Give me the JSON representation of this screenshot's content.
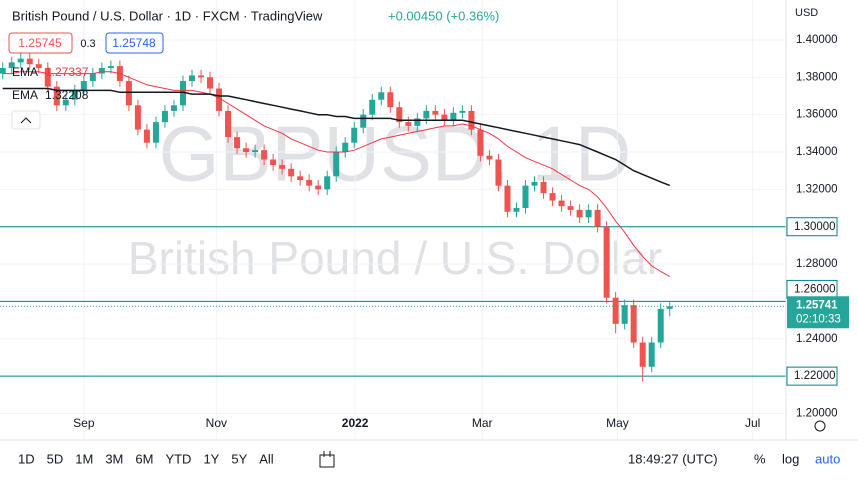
{
  "toolbar": {
    "ranges": [
      "1D",
      "5D",
      "1M",
      "3M",
      "6M",
      "YTD",
      "1Y",
      "5Y",
      "All"
    ],
    "clock": "18:49:27 (UTC)",
    "options": [
      "%",
      "log",
      "auto"
    ]
  },
  "chart_data": {
    "type": "candlestick",
    "title": "British Pound / U.S. Dollar · 1D · FXCM · TradingView",
    "subtitle": "+0.00450 (+0.36%)",
    "bid": "1.25745",
    "spread": "0.3",
    "ask": "1.25748",
    "watermark": [
      "GBPUSD, 1D",
      "British Pound / U.S. Dollar"
    ],
    "currency": "USD",
    "up_color": "#26a69a",
    "down_color": "#ef5350",
    "open": [
      1.382,
      1.385,
      1.388,
      1.39,
      1.387,
      1.385,
      1.375,
      1.365,
      1.368,
      1.373,
      1.378,
      1.382,
      1.385,
      1.386,
      1.378,
      1.365,
      1.352,
      1.345,
      1.356,
      1.362,
      1.365,
      1.378,
      1.381,
      1.38,
      1.374,
      1.362,
      1.348,
      1.342,
      1.34,
      1.341,
      1.336,
      1.333,
      1.331,
      1.327,
      1.325,
      1.322,
      1.32,
      1.327,
      1.34,
      1.345,
      1.353,
      1.36,
      1.368,
      1.372,
      1.364,
      1.356,
      1.354,
      1.358,
      1.362,
      1.36,
      1.357,
      1.361,
      1.362,
      1.352,
      1.338,
      1.336,
      1.322,
      1.308,
      1.31,
      1.322,
      1.324,
      1.318,
      1.314,
      1.311,
      1.309,
      1.305,
      1.309,
      1.3,
      1.262,
      1.248,
      1.258,
      1.238,
      1.225,
      1.238,
      1.256
    ],
    "high": [
      1.388,
      1.391,
      1.393,
      1.393,
      1.39,
      1.388,
      1.378,
      1.371,
      1.376,
      1.381,
      1.385,
      1.388,
      1.389,
      1.389,
      1.381,
      1.368,
      1.355,
      1.359,
      1.365,
      1.368,
      1.381,
      1.384,
      1.384,
      1.383,
      1.377,
      1.365,
      1.351,
      1.345,
      1.344,
      1.344,
      1.339,
      1.336,
      1.334,
      1.33,
      1.328,
      1.325,
      1.33,
      1.343,
      1.348,
      1.356,
      1.363,
      1.371,
      1.375,
      1.375,
      1.367,
      1.359,
      1.361,
      1.365,
      1.365,
      1.363,
      1.364,
      1.365,
      1.365,
      1.355,
      1.341,
      1.339,
      1.325,
      1.313,
      1.325,
      1.327,
      1.327,
      1.321,
      1.317,
      1.314,
      1.312,
      1.312,
      1.312,
      1.303,
      1.265,
      1.261,
      1.261,
      1.241,
      1.241,
      1.259,
      1.2595
    ],
    "low": [
      1.379,
      1.382,
      1.385,
      1.384,
      1.382,
      1.372,
      1.362,
      1.362,
      1.365,
      1.37,
      1.375,
      1.379,
      1.382,
      1.375,
      1.362,
      1.349,
      1.342,
      1.342,
      1.353,
      1.359,
      1.362,
      1.375,
      1.377,
      1.371,
      1.359,
      1.345,
      1.339,
      1.337,
      1.337,
      1.333,
      1.33,
      1.328,
      1.324,
      1.322,
      1.319,
      1.317,
      1.317,
      1.324,
      1.337,
      1.342,
      1.35,
      1.357,
      1.365,
      1.361,
      1.353,
      1.351,
      1.351,
      1.355,
      1.357,
      1.354,
      1.354,
      1.358,
      1.349,
      1.335,
      1.333,
      1.319,
      1.305,
      1.305,
      1.307,
      1.319,
      1.315,
      1.311,
      1.308,
      1.306,
      1.302,
      1.302,
      1.297,
      1.259,
      1.243,
      1.245,
      1.235,
      1.217,
      1.222,
      1.235,
      1.252
    ],
    "close": [
      1.385,
      1.388,
      1.39,
      1.387,
      1.385,
      1.375,
      1.365,
      1.368,
      1.373,
      1.378,
      1.382,
      1.385,
      1.386,
      1.378,
      1.365,
      1.352,
      1.345,
      1.356,
      1.362,
      1.365,
      1.378,
      1.381,
      1.38,
      1.374,
      1.362,
      1.348,
      1.342,
      1.34,
      1.341,
      1.336,
      1.333,
      1.331,
      1.327,
      1.325,
      1.322,
      1.32,
      1.327,
      1.34,
      1.345,
      1.353,
      1.36,
      1.368,
      1.372,
      1.364,
      1.356,
      1.354,
      1.358,
      1.362,
      1.36,
      1.357,
      1.361,
      1.362,
      1.352,
      1.338,
      1.336,
      1.322,
      1.308,
      1.31,
      1.322,
      1.324,
      1.318,
      1.314,
      1.311,
      1.309,
      1.305,
      1.309,
      1.3,
      1.262,
      1.248,
      1.258,
      1.238,
      1.225,
      1.238,
      1.256,
      1.2574
    ],
    "series": [
      {
        "name": "EMA",
        "color": "#f23645",
        "last": 1.27337,
        "values": [
          1.382,
          1.382,
          1.383,
          1.383,
          1.383,
          1.382,
          1.382,
          1.382,
          1.382,
          1.382,
          1.382,
          1.383,
          1.383,
          1.382,
          1.38,
          1.378,
          1.376,
          1.375,
          1.374,
          1.373,
          1.373,
          1.373,
          1.372,
          1.371,
          1.369,
          1.366,
          1.363,
          1.36,
          1.357,
          1.354,
          1.352,
          1.35,
          1.347,
          1.345,
          1.343,
          1.341,
          1.34,
          1.34,
          1.34,
          1.341,
          1.343,
          1.345,
          1.347,
          1.348,
          1.349,
          1.35,
          1.351,
          1.352,
          1.353,
          1.354,
          1.354,
          1.355,
          1.354,
          1.352,
          1.35,
          1.347,
          1.343,
          1.34,
          1.337,
          1.335,
          1.333,
          1.331,
          1.328,
          1.325,
          1.322,
          1.32,
          1.316,
          1.31,
          1.303,
          1.297,
          1.29,
          1.284,
          1.279,
          1.276,
          1.2734
        ]
      },
      {
        "name": "EMA",
        "color": "#131722",
        "last": 1.32208,
        "values": [
          1.374,
          1.374,
          1.374,
          1.374,
          1.374,
          1.374,
          1.373,
          1.373,
          1.373,
          1.373,
          1.373,
          1.373,
          1.373,
          1.372,
          1.372,
          1.372,
          1.372,
          1.372,
          1.372,
          1.372,
          1.372,
          1.371,
          1.371,
          1.371,
          1.37,
          1.37,
          1.369,
          1.368,
          1.367,
          1.366,
          1.365,
          1.364,
          1.363,
          1.362,
          1.361,
          1.36,
          1.36,
          1.359,
          1.359,
          1.358,
          1.358,
          1.358,
          1.358,
          1.358,
          1.357,
          1.357,
          1.357,
          1.357,
          1.357,
          1.357,
          1.357,
          1.357,
          1.356,
          1.355,
          1.354,
          1.353,
          1.352,
          1.351,
          1.35,
          1.349,
          1.348,
          1.347,
          1.346,
          1.345,
          1.344,
          1.342,
          1.34,
          1.338,
          1.336,
          1.333,
          1.33,
          1.328,
          1.326,
          1.324,
          1.3221
        ]
      }
    ],
    "hlines": [
      {
        "value": 1.3,
        "label": "1.30000"
      },
      {
        "value": 1.26,
        "label": "1.26000"
      },
      {
        "value": 1.22,
        "label": "1.22000"
      }
    ],
    "hline_color": "#00838f",
    "price": {
      "value": 1.25741,
      "countdown": "02:10:33"
    },
    "xlim": [
      -0.3,
      86.9
    ],
    "xticks": [
      {
        "value": 9,
        "label": "Sep"
      },
      {
        "value": 23.7,
        "label": "Nov"
      },
      {
        "value": 39.1,
        "label": "2022"
      },
      {
        "value": 53.2,
        "label": "Mar"
      },
      {
        "value": 68.2,
        "label": "May"
      },
      {
        "value": 83.2,
        "label": "Jul"
      }
    ],
    "ylim": [
      1.1858,
      1.4214
    ],
    "yticks": [
      {
        "value": 1.2,
        "label": "1.20000"
      },
      {
        "value": 1.22,
        "label": "1.22000"
      },
      {
        "value": 1.24,
        "label": "1.24000"
      },
      {
        "value": 1.26,
        "label": "1.26000"
      },
      {
        "value": 1.28,
        "label": "1.28000"
      },
      {
        "value": 1.3,
        "label": "1.30000"
      },
      {
        "value": 1.32,
        "label": "1.32000"
      },
      {
        "value": 1.34,
        "label": "1.34000"
      },
      {
        "value": 1.36,
        "label": "1.36000"
      },
      {
        "value": 1.38,
        "label": "1.38000"
      },
      {
        "value": 1.4,
        "label": "1.40000"
      }
    ]
  }
}
